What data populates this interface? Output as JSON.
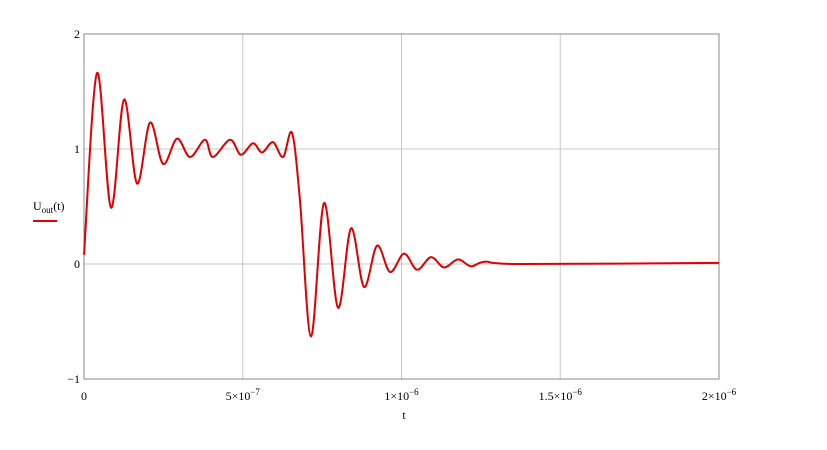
{
  "chart_data": {
    "type": "line",
    "x_label": "t",
    "y_label": "Uout(t)",
    "x": [
      0,
      4.1e-08,
      8.5e-08,
      1.26e-07,
      1.67e-07,
      2.08e-07,
      2.49e-07,
      2.93e-07,
      3.34e-07,
      3.81e-07,
      4.06e-07,
      4.6e-07,
      4.94e-07,
      5.32e-07,
      5.61e-07,
      5.95e-07,
      6.27e-07,
      6.55e-07,
      6.8e-07,
      7.15e-07,
      7.56e-07,
      8e-07,
      8.41e-07,
      8.82e-07,
      9.23e-07,
      9.64e-07,
      1.008e-06,
      1.049e-06,
      1.093e-06,
      1.134e-06,
      1.178e-06,
      1.219e-06,
      1.263e-06,
      1.373e-06,
      2e-06
    ],
    "series": [
      {
        "name": "Uout(t)",
        "color": "#e00000",
        "values": [
          0.08,
          1.66,
          0.49,
          1.43,
          0.7,
          1.23,
          0.87,
          1.09,
          0.93,
          1.08,
          0.93,
          1.08,
          0.95,
          1.05,
          0.97,
          1.06,
          0.93,
          1.14,
          0.56,
          -0.63,
          0.53,
          -0.38,
          0.31,
          -0.2,
          0.16,
          -0.07,
          0.09,
          -0.05,
          0.06,
          -0.03,
          0.04,
          -0.02,
          0.02,
          0.0,
          0.01
        ]
      }
    ],
    "xlim": [
      0,
      2e-06
    ],
    "xticks": [
      0,
      {
        "value": 5e-07,
        "label": "5×10−7"
      },
      {
        "value": 1e-06,
        "label": "1×10−6"
      },
      {
        "value": 1.5e-06,
        "label": "1.5×10−6"
      },
      {
        "value": 2e-06,
        "label": "2×10−6"
      }
    ],
    "ylim": [
      -1,
      2
    ],
    "yticks": [
      {
        "value": -1,
        "label": "−1"
      },
      0,
      1,
      2
    ],
    "grid": true
  }
}
